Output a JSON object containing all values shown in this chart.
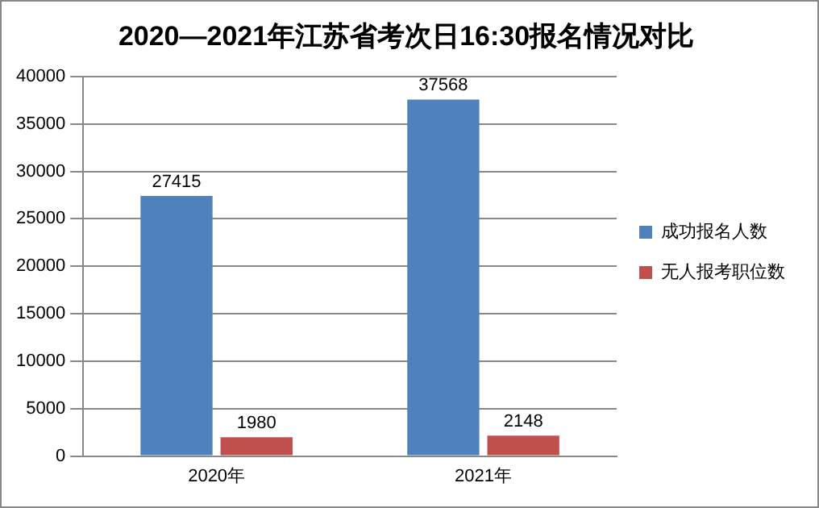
{
  "chart_data": {
    "type": "bar",
    "title": "2020—2021年江苏省考次日16:30报名情况对比",
    "categories": [
      "2020年",
      "2021年"
    ],
    "series": [
      {
        "name": "成功报名人数",
        "color": "#4f81bd",
        "values": [
          27415,
          37568
        ]
      },
      {
        "name": "无人报考职位数",
        "color": "#c0504d",
        "values": [
          1980,
          2148
        ]
      }
    ],
    "ylim": [
      0,
      40000
    ],
    "yticks": [
      0,
      5000,
      10000,
      15000,
      20000,
      25000,
      30000,
      35000,
      40000
    ],
    "grid": "y",
    "legend": "right",
    "data_labels": true
  }
}
